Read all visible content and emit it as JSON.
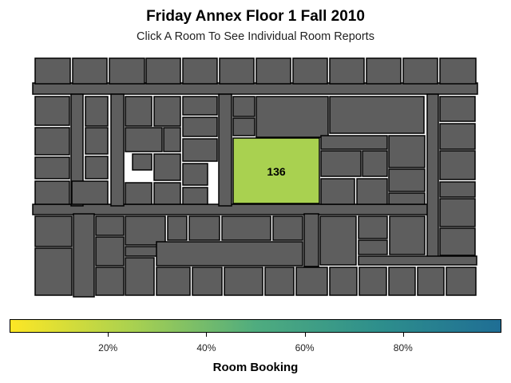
{
  "title": "Friday Annex Floor 1 Fall 2010",
  "subtitle": "Click A Room To See Individual Room Reports",
  "legend": {
    "title": "Room Booking",
    "tick_labels": [
      "20%",
      "40%",
      "60%",
      "80%"
    ],
    "tick_values": [
      0.2,
      0.4,
      0.6,
      0.8
    ],
    "range": [
      0,
      1
    ],
    "gradient_colors": [
      "#fde725",
      "#a9d150",
      "#4fac7f",
      "#2e8f8c",
      "#1f6e95"
    ]
  },
  "map": {
    "room_color": "#5e5e5e",
    "room_outline": "#000000",
    "highlighted_room": {
      "label": "136",
      "booking": 0.4,
      "color": "#a9d150"
    }
  }
}
